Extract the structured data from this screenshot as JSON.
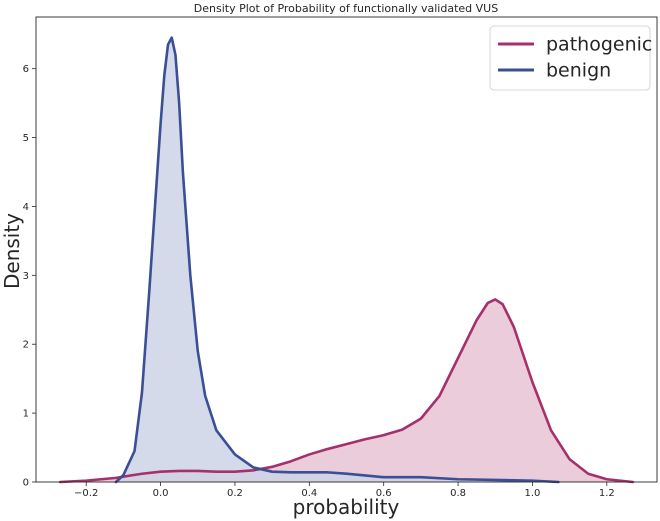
{
  "chart_data": {
    "type": "area",
    "title": "Density Plot of Probability of functionally validated VUS",
    "xlabel": "probability",
    "ylabel": "Density",
    "xlim": [
      -0.335,
      1.335
    ],
    "ylim": [
      0,
      6.75
    ],
    "xticks": [
      -0.2,
      0.0,
      0.2,
      0.4,
      0.6,
      0.8,
      1.0,
      1.2
    ],
    "xtick_labels": [
      "−0.2",
      "0.0",
      "0.2",
      "0.4",
      "0.6",
      "0.8",
      "1.0",
      "1.2"
    ],
    "yticks": [
      0,
      1,
      2,
      3,
      4,
      5,
      6
    ],
    "ytick_labels": [
      "0",
      "1",
      "2",
      "3",
      "4",
      "5",
      "6"
    ],
    "grid": false,
    "legend_position": "top-right",
    "series": [
      {
        "name": "pathogenic",
        "color": "#a6306b",
        "fill": "#e8c3d3",
        "x": [
          -0.27,
          -0.2,
          -0.12,
          -0.05,
          0.0,
          0.05,
          0.1,
          0.15,
          0.2,
          0.25,
          0.3,
          0.35,
          0.4,
          0.45,
          0.5,
          0.55,
          0.6,
          0.65,
          0.7,
          0.75,
          0.8,
          0.85,
          0.88,
          0.9,
          0.92,
          0.95,
          1.0,
          1.05,
          1.1,
          1.15,
          1.2,
          1.27
        ],
        "y": [
          0.0,
          0.02,
          0.06,
          0.12,
          0.15,
          0.16,
          0.16,
          0.15,
          0.15,
          0.17,
          0.22,
          0.3,
          0.4,
          0.48,
          0.55,
          0.62,
          0.68,
          0.76,
          0.92,
          1.25,
          1.8,
          2.35,
          2.6,
          2.65,
          2.58,
          2.25,
          1.45,
          0.75,
          0.33,
          0.12,
          0.04,
          0.0
        ]
      },
      {
        "name": "benign",
        "color": "#3a4f96",
        "fill": "#cdd3e6",
        "x": [
          -0.12,
          -0.1,
          -0.07,
          -0.05,
          -0.03,
          -0.01,
          0.0,
          0.01,
          0.02,
          0.03,
          0.04,
          0.05,
          0.06,
          0.08,
          0.1,
          0.12,
          0.15,
          0.2,
          0.25,
          0.3,
          0.35,
          0.4,
          0.45,
          0.5,
          0.6,
          0.7,
          0.8,
          0.9,
          1.0,
          1.07
        ],
        "y": [
          0.0,
          0.1,
          0.45,
          1.3,
          2.8,
          4.4,
          5.2,
          5.9,
          6.35,
          6.45,
          6.2,
          5.5,
          4.5,
          3.0,
          1.9,
          1.25,
          0.75,
          0.4,
          0.21,
          0.15,
          0.14,
          0.14,
          0.14,
          0.12,
          0.07,
          0.07,
          0.04,
          0.03,
          0.02,
          0.0
        ]
      }
    ]
  }
}
